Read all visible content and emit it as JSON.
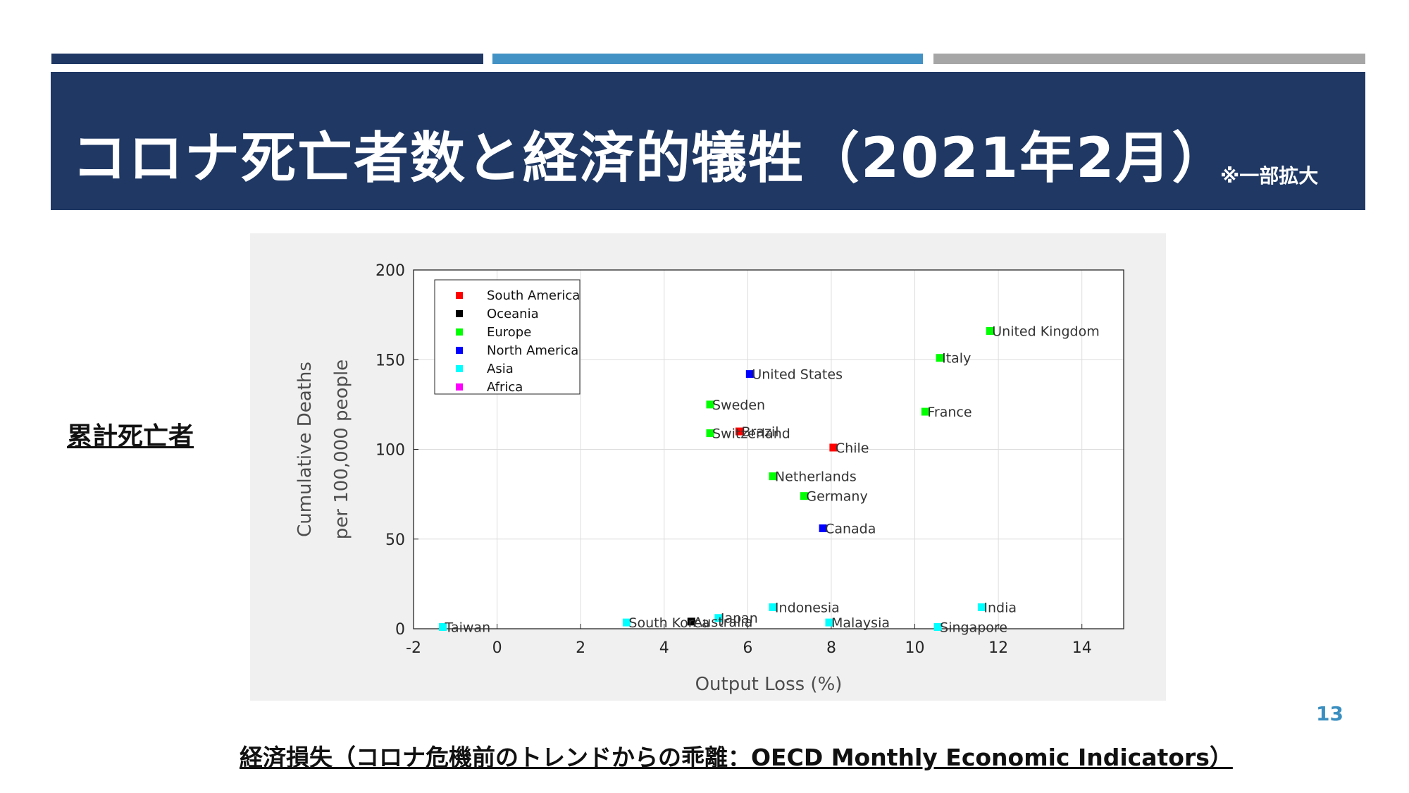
{
  "slide": {
    "title": "コロナ死亡者数と経済的犠牲（2021年2月）",
    "title_note": "※一部拡大",
    "side_label": "累計死亡者",
    "caption": "経済損失（コロナ危機前のトレンドからの乖離：OECD Monthly Economic Indicators）",
    "page_number": "13"
  },
  "colors": {
    "navy": "#1f3864",
    "accent_blue": "#4392c5",
    "gray": "#a6a6a6",
    "South America": "#ff0000",
    "Oceania": "#000000",
    "Europe": "#00ff00",
    "North America": "#0000ff",
    "Asia": "#00ffff",
    "Africa": "#ff00ff"
  },
  "chart_data": {
    "type": "scatter",
    "xlabel": "Output Loss (%)",
    "ylabel": [
      "Cumulative Deaths",
      "per 100,000 people"
    ],
    "xlim": [
      -2,
      15
    ],
    "ylim": [
      0,
      200
    ],
    "xticks": [
      -2,
      0,
      2,
      4,
      6,
      8,
      10,
      12,
      14
    ],
    "yticks": [
      0,
      50,
      100,
      150,
      200
    ],
    "grid": true,
    "legend_position": "top-left",
    "legend": [
      "South America",
      "Oceania",
      "Europe",
      "North America",
      "Asia",
      "Africa"
    ],
    "points": [
      {
        "label": "United Kingdom",
        "region": "Europe",
        "x": 11.8,
        "y": 166
      },
      {
        "label": "Italy",
        "region": "Europe",
        "x": 10.6,
        "y": 151
      },
      {
        "label": "United States",
        "region": "North America",
        "x": 6.05,
        "y": 142
      },
      {
        "label": "Sweden",
        "region": "Europe",
        "x": 5.1,
        "y": 125
      },
      {
        "label": "France",
        "region": "Europe",
        "x": 10.25,
        "y": 121
      },
      {
        "label": "Brazil",
        "region": "South America",
        "x": 5.8,
        "y": 110
      },
      {
        "label": "Switzerland",
        "region": "Europe",
        "x": 5.1,
        "y": 109
      },
      {
        "label": "Chile",
        "region": "South America",
        "x": 8.05,
        "y": 101
      },
      {
        "label": "Netherlands",
        "region": "Europe",
        "x": 6.6,
        "y": 85
      },
      {
        "label": "Germany",
        "region": "Europe",
        "x": 7.35,
        "y": 74
      },
      {
        "label": "Canada",
        "region": "North America",
        "x": 7.8,
        "y": 56
      },
      {
        "label": "Indonesia",
        "region": "Asia",
        "x": 6.6,
        "y": 12
      },
      {
        "label": "India",
        "region": "Asia",
        "x": 11.6,
        "y": 12
      },
      {
        "label": "Japan",
        "region": "Asia",
        "x": 5.3,
        "y": 6
      },
      {
        "label": "Australia",
        "region": "Oceania",
        "x": 4.65,
        "y": 4
      },
      {
        "label": "South Korea",
        "region": "Asia",
        "x": 3.1,
        "y": 3.5
      },
      {
        "label": "Malaysia",
        "region": "Asia",
        "x": 7.95,
        "y": 3.5
      },
      {
        "label": "Taiwan",
        "region": "Asia",
        "x": -1.3,
        "y": 1
      },
      {
        "label": "Singapore",
        "region": "Asia",
        "x": 10.55,
        "y": 1
      }
    ]
  }
}
